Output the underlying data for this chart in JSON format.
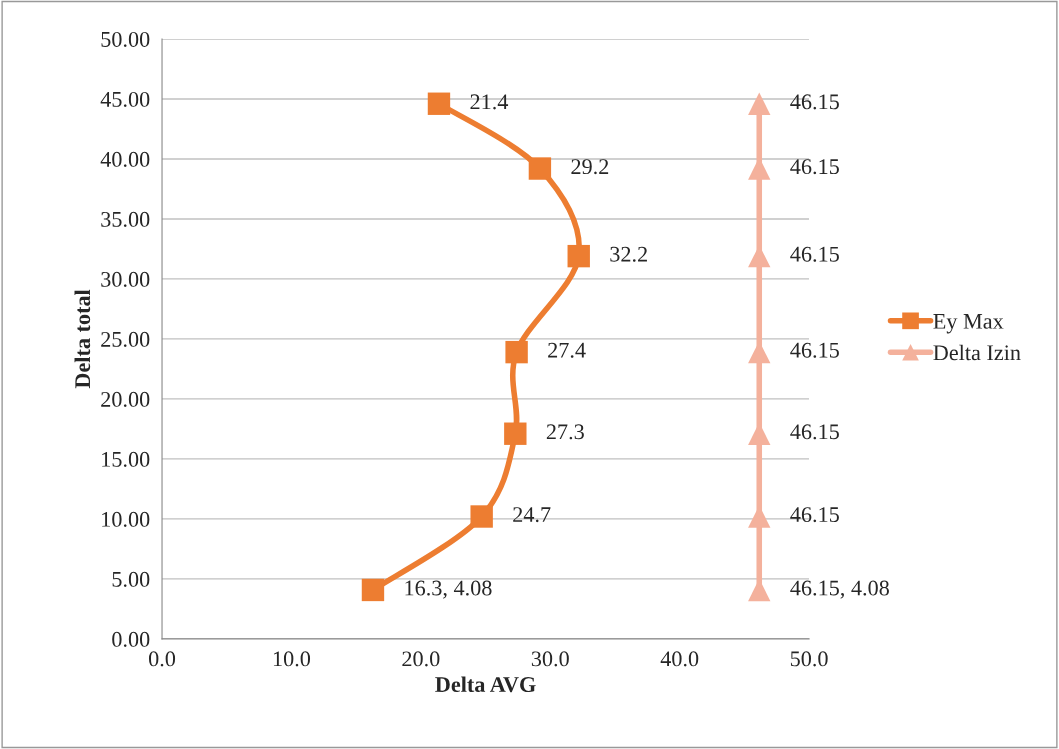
{
  "chart_data": {
    "type": "line",
    "xlabel": "Delta AVG",
    "ylabel": "Delta total",
    "xlim": [
      0,
      50
    ],
    "xticks": [
      {
        "value": 0,
        "label": "0.0"
      },
      {
        "value": 10,
        "label": "10.0"
      },
      {
        "value": 20,
        "label": "20.0"
      },
      {
        "value": 30,
        "label": "30.0"
      },
      {
        "value": 40,
        "label": "40.0"
      },
      {
        "value": 50,
        "label": "50.0"
      }
    ],
    "ylim": [
      0,
      50
    ],
    "yticks": [
      {
        "value": 0,
        "label": "0.00"
      },
      {
        "value": 5,
        "label": "5.00"
      },
      {
        "value": 10,
        "label": "10.00"
      },
      {
        "value": 15,
        "label": "15.00"
      },
      {
        "value": 20,
        "label": "20.00"
      },
      {
        "value": 25,
        "label": "25.00"
      },
      {
        "value": 30,
        "label": "30.00"
      },
      {
        "value": 35,
        "label": "35.00"
      },
      {
        "value": 40,
        "label": "40.00"
      },
      {
        "value": 45,
        "label": "45.00"
      },
      {
        "value": 50,
        "label": "50.00"
      }
    ],
    "grid": "y",
    "legend": "right",
    "series": [
      {
        "name": "Ey Max",
        "color": "#ed7d31",
        "marker": "square",
        "x": [
          16.3,
          24.7,
          27.3,
          27.4,
          32.2,
          29.2,
          21.4
        ],
        "values": [
          4.08,
          10.2,
          17.1,
          23.9,
          31.9,
          39.2,
          44.6
        ]
      },
      {
        "name": "Delta Izin",
        "color": "#f4b19c",
        "marker": "triangle",
        "x": [
          46.15,
          46.15,
          46.15,
          46.15,
          46.15,
          46.15,
          46.15
        ],
        "values": [
          4.08,
          10.2,
          17.1,
          23.9,
          31.9,
          39.2,
          44.6
        ]
      }
    ],
    "annotations": [
      {
        "text": "16.3, 4.08",
        "x": 16.3,
        "y": 4.08
      },
      {
        "text": "24.7",
        "x": 24.7,
        "y": 10.2
      },
      {
        "text": "27.3",
        "x": 27.3,
        "y": 17.1
      },
      {
        "text": "27.4",
        "x": 27.4,
        "y": 23.9
      },
      {
        "text": "32.2",
        "x": 32.2,
        "y": 31.9
      },
      {
        "text": "29.2",
        "x": 29.2,
        "y": 39.2
      },
      {
        "text": "21.4",
        "x": 21.4,
        "y": 44.6
      },
      {
        "text": "46.15, 4.08",
        "x": 46.15,
        "y": 4.08
      },
      {
        "text": "46.15",
        "x": 46.15,
        "y": 10.2
      },
      {
        "text": "46.15",
        "x": 46.15,
        "y": 17.1
      },
      {
        "text": "46.15",
        "x": 46.15,
        "y": 23.9
      },
      {
        "text": "46.15",
        "x": 46.15,
        "y": 31.9
      },
      {
        "text": "46.15",
        "x": 46.15,
        "y": 39.2
      },
      {
        "text": "46.15",
        "x": 46.15,
        "y": 44.6
      }
    ]
  }
}
